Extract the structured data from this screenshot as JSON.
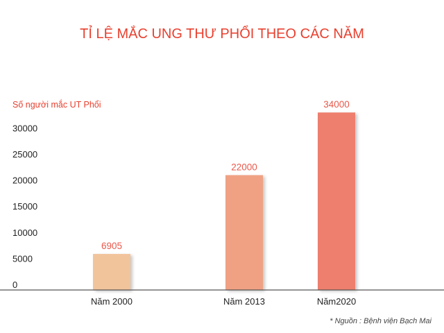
{
  "chart_data": {
    "type": "bar",
    "title": "TỈ LỆ MẮC UNG THƯ PHỔI THEO CÁC NĂM",
    "ylabel": "Số người mắc UT Phổi",
    "xlabel": "",
    "categories": [
      "Năm 2000",
      "Năm 2013",
      "Năm2020"
    ],
    "values": [
      6905,
      22000,
      34000
    ],
    "data_labels": [
      "6905",
      "22000",
      "34000"
    ],
    "yticks": [
      0,
      5000,
      10000,
      15000,
      20000,
      25000,
      30000
    ],
    "ytick_labels": [
      "0",
      "5000",
      "10000",
      "15000",
      "20000",
      "25000",
      "30000"
    ],
    "ylim": [
      0,
      30000
    ],
    "grid": false,
    "legend": "none",
    "bar_colors": [
      "#f2c49c",
      "#f0a184",
      "#ee7f6e"
    ],
    "source": "* Nguồn : Bệnh viện Bạch Mai"
  }
}
